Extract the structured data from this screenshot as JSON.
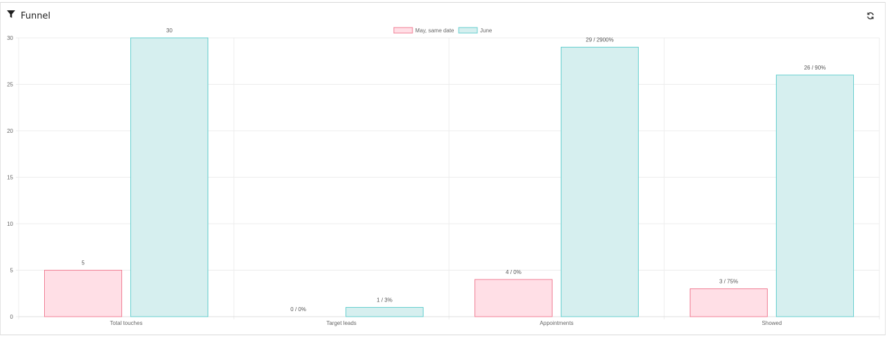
{
  "widget": {
    "title": "Funnel",
    "icons": {
      "header": "funnel-icon",
      "refresh": "refresh-icon"
    }
  },
  "colors": {
    "may_fill": "#ffdfe6",
    "may_stroke": "#f07f95",
    "june_fill": "#d6efef",
    "june_stroke": "#66cfcf",
    "grid": "#ececec"
  },
  "chart_data": {
    "type": "bar",
    "title": "",
    "xlabel": "",
    "ylabel": "",
    "ylim": [
      0,
      30
    ],
    "yticks": [
      0,
      5,
      10,
      15,
      20,
      25,
      30
    ],
    "grid": true,
    "legend_position": "top-center",
    "categories": [
      "Total touches",
      "Target leads",
      "Appointments",
      "Showed"
    ],
    "series": [
      {
        "name": "May, same date",
        "values": [
          5,
          0,
          4,
          3
        ],
        "labels": [
          "5",
          "0 / 0%",
          "4 / 0%",
          "3 / 75%"
        ]
      },
      {
        "name": "June",
        "values": [
          30,
          1,
          29,
          26
        ],
        "labels": [
          "30",
          "1 / 3%",
          "29 / 2900%",
          "26 / 90%"
        ]
      }
    ]
  }
}
